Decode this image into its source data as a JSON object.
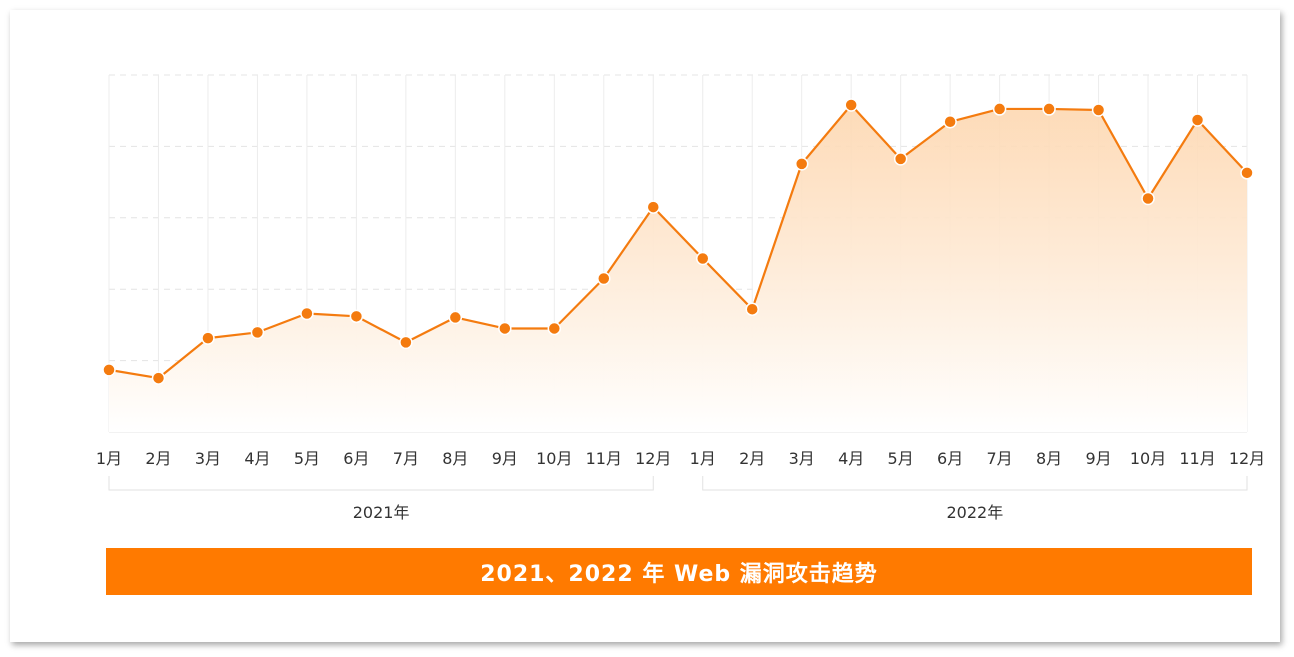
{
  "colors": {
    "line": "#f47b0f",
    "marker": "#f47b0f",
    "area_top": "#fdd7b0",
    "area_bottom": "#ffffff",
    "grid": "#e4e4e4",
    "banner": "#ff7a00",
    "text": "#333333"
  },
  "chart_data": {
    "type": "area",
    "title": "2021、2022 年 Web 漏洞攻击趋势",
    "xlabel": "",
    "ylabel": "",
    "ylim": [
      0,
      100
    ],
    "grid": true,
    "y_tick_labels_shown": false,
    "categories": [
      "1月",
      "2月",
      "3月",
      "4月",
      "5月",
      "6月",
      "7月",
      "8月",
      "9月",
      "10月",
      "11月",
      "12月",
      "1月",
      "2月",
      "3月",
      "4月",
      "5月",
      "6月",
      "7月",
      "8月",
      "9月",
      "10月",
      "11月",
      "12月"
    ],
    "groups": [
      {
        "label": "2021年",
        "start": 0,
        "end": 11
      },
      {
        "label": "2022年",
        "start": 12,
        "end": 23
      }
    ],
    "series": [
      {
        "values": [
          17.4,
          15.1,
          26.3,
          27.9,
          33.2,
          32.4,
          25.1,
          32.1,
          29.0,
          29.0,
          43.0,
          63.0,
          48.6,
          34.4,
          75.1,
          91.6,
          76.5,
          86.9,
          90.5,
          90.5,
          90.2,
          65.4,
          87.4,
          72.6
        ]
      }
    ]
  }
}
